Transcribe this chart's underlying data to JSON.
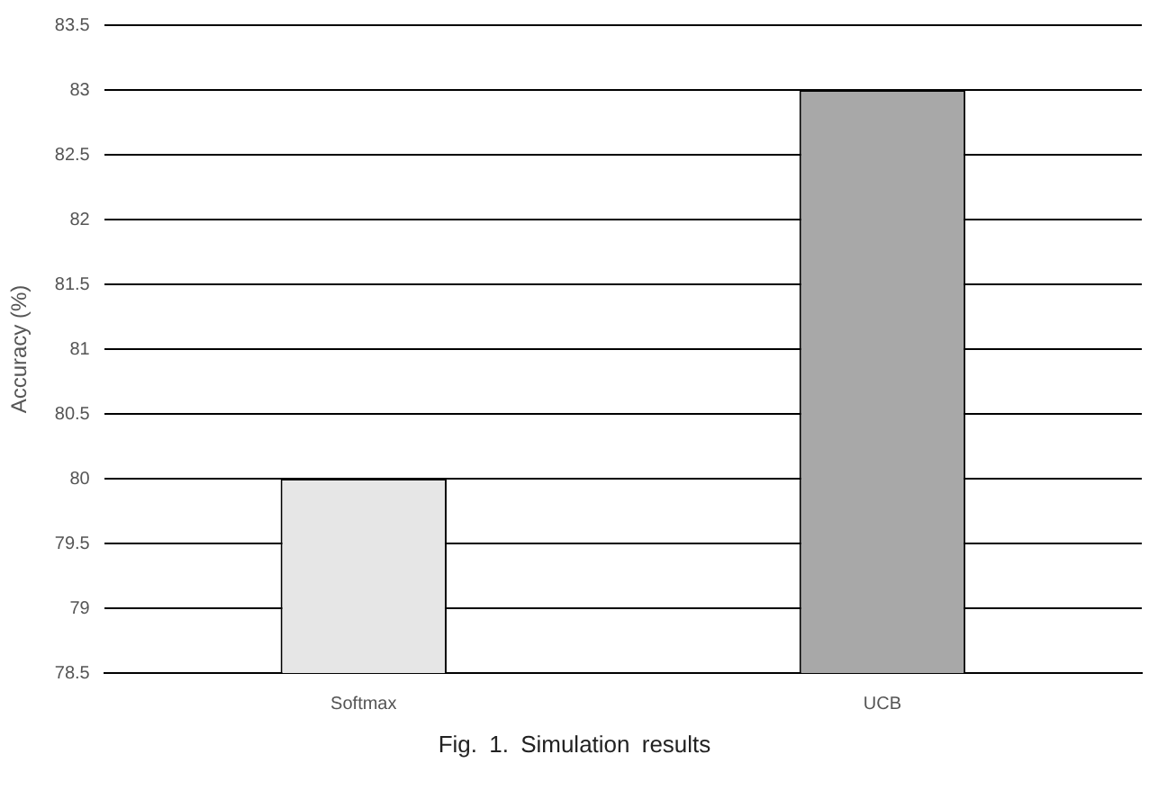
{
  "chart_data": {
    "type": "bar",
    "ylabel": "Accuracy (%)",
    "categories": [
      "Softmax",
      "UCB"
    ],
    "values": [
      80,
      83
    ],
    "colors": [
      "#e6e6e6",
      "#a8a8a8"
    ],
    "ylim": [
      78.5,
      83.5
    ],
    "yticks": [
      78.5,
      79,
      79.5,
      80,
      80.5,
      81,
      81.5,
      82,
      82.5,
      83,
      83.5
    ],
    "grid": "y",
    "annotations": [
      "Fig. 1. Simulation results"
    ]
  }
}
